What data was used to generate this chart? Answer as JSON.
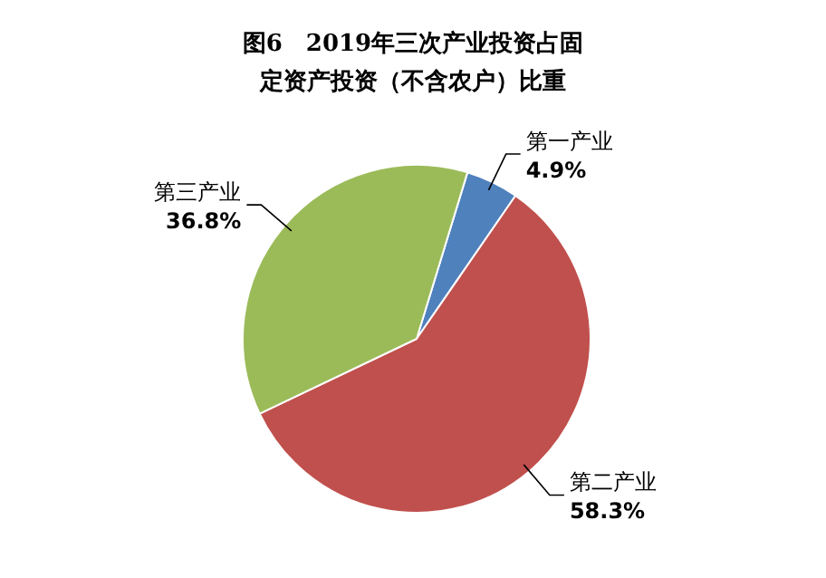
{
  "chart_data": {
    "type": "pie",
    "title": "图6　2019年三次产业投资占固定资产投资（不含农户）比重",
    "categories": [
      "第一产业",
      "第二产业",
      "第三产业"
    ],
    "values": [
      4.9,
      58.3,
      36.8
    ],
    "value_labels": [
      "4.9%",
      "58.3%",
      "36.8%"
    ],
    "colors": [
      "#4f81bd",
      "#c0504d",
      "#9bbb59"
    ]
  }
}
